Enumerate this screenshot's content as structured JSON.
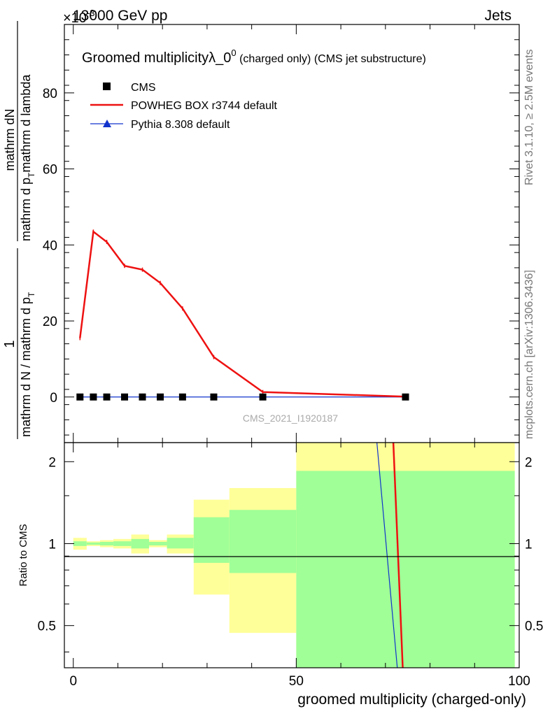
{
  "header": {
    "energy_label": "13000 GeV pp",
    "category_label": "Jets",
    "exponent_label": "×10",
    "exponent_sup": "-3"
  },
  "side_labels": {
    "rivet": "Rivet 3.1.10, ≥ 2.5M events",
    "source": "mcplots.cern.ch [arXiv:1306.3436]"
  },
  "colors": {
    "cms": "#000000",
    "powheg": "#ee1111",
    "pythia": "#1133cc",
    "band_inner": "#a0ff97",
    "band_outer": "#ffff99"
  },
  "chart_data": [
    {
      "type": "line",
      "title_main": "Groomed multiplicityλ_0",
      "title_sup": "0",
      "title_tail": " (charged only) (CMS jet substructure)",
      "watermark": "CMS_2021_I1920187",
      "ylabel_numerator": "mathrm dN",
      "ylabel_denominator_1": "mathrm d p",
      "ylabel_denominator_1_sub": "T",
      "ylabel_denominator_2": "mathrm d lambda",
      "ylabel_prefix_num": "1",
      "ylabel_prefix_den": "mathrm d N / mathrm d p",
      "ylabel_prefix_den_sub": "T",
      "y_multiplier": "1e-3",
      "ylim": [
        -12,
        98
      ],
      "xlim": [
        -2,
        100
      ],
      "yticks": [
        0,
        20,
        40,
        60,
        80
      ],
      "legend": {
        "position": "top-left",
        "entries": [
          "CMS",
          "POWHEG BOX r3744 default",
          "Pythia 8.308 default"
        ]
      },
      "series": [
        {
          "name": "CMS",
          "x": [
            1.5,
            4.5,
            7.5,
            11.5,
            15.5,
            19.5,
            24.5,
            31.5,
            42.5,
            74.5
          ],
          "y": [
            0,
            0,
            0,
            0,
            0,
            0,
            0,
            0,
            0,
            0
          ]
        },
        {
          "name": "POWHEG BOX r3744 default",
          "x": [
            1.5,
            4.5,
            7.5,
            11.5,
            15.5,
            19.5,
            24.5,
            31.5,
            42.5,
            74.5
          ],
          "y": [
            15.5,
            43.5,
            40.8,
            34.5,
            33.5,
            30.0,
            23.3,
            10.5,
            1.3,
            0.1
          ]
        },
        {
          "name": "Pythia 8.308 default",
          "x": [
            1.5,
            4.5,
            7.5,
            11.5,
            15.5,
            19.5,
            24.5,
            31.5,
            42.5,
            74.5
          ],
          "y": [
            0,
            0,
            0,
            0,
            0,
            0,
            0,
            0,
            0,
            0
          ]
        }
      ]
    },
    {
      "type": "line",
      "ylabel": "Ratio to CMS",
      "xlabel": "groomed multiplicity (charged-only)",
      "xlim": [
        -2,
        100
      ],
      "ylim": [
        0.35,
        2.35
      ],
      "xticks": [
        0,
        50,
        100
      ],
      "yticks": [
        0.5,
        1,
        2
      ],
      "y_scale": "log",
      "uncertainty_bands": [
        {
          "x0": 0,
          "x1": 3,
          "inner": [
            0.98,
            1.02
          ],
          "outer": [
            0.95,
            1.05
          ]
        },
        {
          "x0": 3,
          "x1": 6,
          "inner": [
            0.99,
            1.01
          ],
          "outer": [
            0.98,
            1.02
          ]
        },
        {
          "x0": 6,
          "x1": 9,
          "inner": [
            0.985,
            1.015
          ],
          "outer": [
            0.97,
            1.03
          ]
        },
        {
          "x0": 9,
          "x1": 13,
          "inner": [
            0.98,
            1.02
          ],
          "outer": [
            0.96,
            1.04
          ]
        },
        {
          "x0": 13,
          "x1": 17,
          "inner": [
            0.96,
            1.04
          ],
          "outer": [
            0.92,
            1.08
          ]
        },
        {
          "x0": 17,
          "x1": 21,
          "inner": [
            0.985,
            1.015
          ],
          "outer": [
            0.97,
            1.03
          ]
        },
        {
          "x0": 21,
          "x1": 27,
          "inner": [
            0.96,
            1.05
          ],
          "outer": [
            0.92,
            1.08
          ]
        },
        {
          "x0": 27,
          "x1": 35,
          "inner": [
            0.85,
            1.25
          ],
          "outer": [
            0.65,
            1.45
          ]
        },
        {
          "x0": 35,
          "x1": 50,
          "inner": [
            0.78,
            1.33
          ],
          "outer": [
            0.47,
            1.6
          ]
        },
        {
          "x0": 50,
          "x1": 99,
          "inner": [
            0.2,
            1.85
          ],
          "outer": [
            0.2,
            3.0
          ]
        }
      ],
      "series": [
        {
          "name": "POWHEG BOX r3744 default",
          "x": [
            71.5,
            74.5
          ],
          "y": [
            3.0,
            0.2
          ]
        },
        {
          "name": "Pythia 8.308 default",
          "x": [
            67.5,
            74.0
          ],
          "y": [
            3.0,
            0.2
          ]
        }
      ]
    }
  ]
}
